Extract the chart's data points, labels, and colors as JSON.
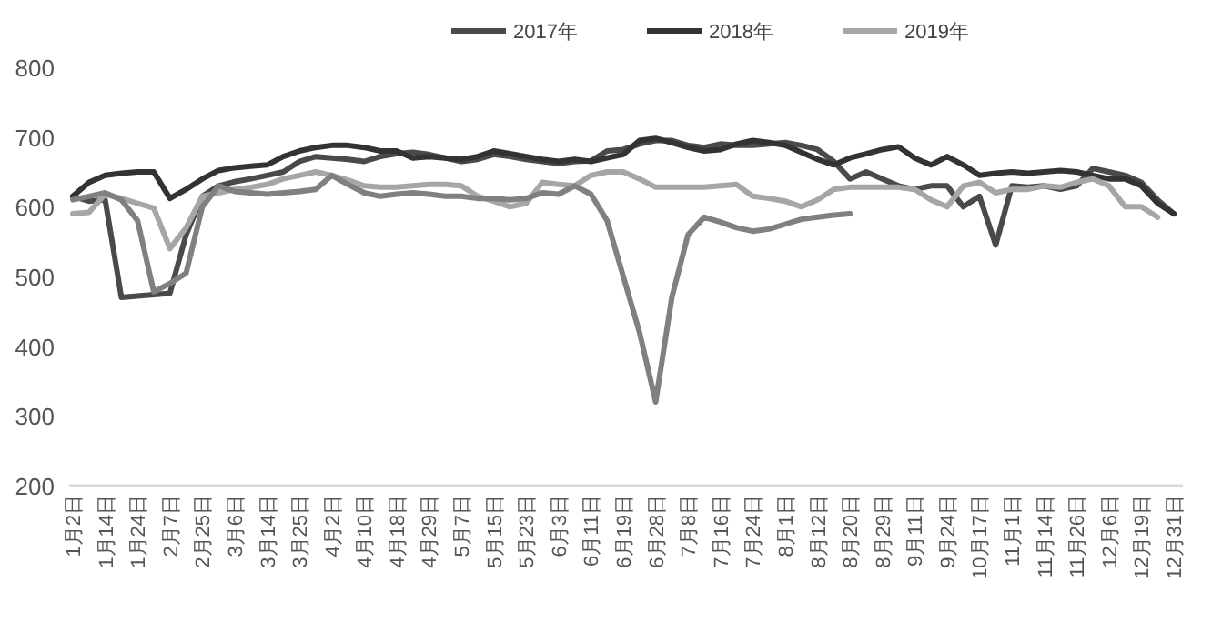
{
  "chart_data": {
    "type": "line",
    "categories": [
      "1月2日",
      null,
      "1月14日",
      null,
      "1月24日",
      null,
      "2月7日",
      null,
      "2月25日",
      null,
      "3月6日",
      null,
      "3月14日",
      null,
      "3月25日",
      null,
      "4月2日",
      null,
      "4月10日",
      null,
      "4月18日",
      null,
      "4月29日",
      null,
      "5月7日",
      null,
      "5月15日",
      null,
      "5月23日",
      null,
      "6月3日",
      null,
      "6月11日",
      null,
      "6月19日",
      null,
      "6月28日",
      null,
      "7月8日",
      null,
      "7月16日",
      null,
      "7月24日",
      null,
      "8月1日",
      null,
      "8月12日",
      null,
      "8月20日",
      null,
      "8月29日",
      null,
      "9月11日",
      null,
      "9月24日",
      null,
      "10月17日",
      null,
      "11月1日",
      null,
      "11月14日",
      null,
      "11月26日",
      null,
      "12月6日",
      null,
      "12月19日",
      null,
      "12月31日"
    ],
    "series": [
      {
        "name": "2017年",
        "color": "#4a4a4a",
        "values": [
          615,
          608,
          610,
          470,
          472,
          474,
          476,
          560,
          615,
          630,
          636,
          640,
          645,
          650,
          665,
          672,
          670,
          668,
          665,
          672,
          676,
          678,
          675,
          670,
          665,
          668,
          675,
          672,
          668,
          665,
          662,
          665,
          666,
          680,
          682,
          690,
          695,
          695,
          688,
          685,
          690,
          688,
          688,
          690,
          692,
          688,
          682,
          665,
          640,
          650,
          640,
          630,
          625,
          630,
          630,
          600,
          615,
          545,
          630,
          628,
          630,
          625,
          630,
          655,
          650,
          645,
          635,
          610,
          590
        ]
      },
      {
        "name": "2018年",
        "color": "#333333",
        "values": [
          615,
          635,
          645,
          648,
          650,
          650,
          612,
          625,
          640,
          652,
          656,
          658,
          660,
          672,
          680,
          685,
          688,
          688,
          685,
          680,
          680,
          670,
          672,
          670,
          668,
          672,
          680,
          676,
          672,
          668,
          665,
          668,
          665,
          670,
          675,
          695,
          698,
          692,
          685,
          680,
          682,
          690,
          695,
          692,
          688,
          678,
          668,
          660,
          670,
          676,
          682,
          686,
          670,
          660,
          672,
          660,
          645,
          648,
          650,
          648,
          650,
          652,
          650,
          645,
          640,
          640,
          630,
          605,
          590
        ]
      },
      {
        "name": "2019年",
        "color": "#a6a6a6",
        "values": [
          590,
          592,
          618,
          612,
          605,
          598,
          540,
          570,
          615,
          620,
          625,
          628,
          632,
          640,
          645,
          650,
          645,
          638,
          630,
          628,
          628,
          630,
          632,
          632,
          630,
          615,
          608,
          600,
          605,
          635,
          632,
          630,
          645,
          650,
          650,
          640,
          628,
          628,
          628,
          628,
          630,
          632,
          615,
          612,
          608,
          600,
          610,
          625,
          628,
          628,
          628,
          628,
          625,
          610,
          600,
          630,
          635,
          620,
          625,
          625,
          630,
          628,
          635,
          640,
          630,
          600,
          600,
          585,
          null
        ]
      },
      {
        "color": "#808080",
        "values": [
          610,
          615,
          620,
          610,
          580,
          478,
          490,
          505,
          600,
          630,
          622,
          620,
          618,
          620,
          622,
          625,
          645,
          632,
          620,
          615,
          618,
          620,
          618,
          615,
          615,
          612,
          612,
          610,
          612,
          620,
          618,
          630,
          618,
          580,
          500,
          420,
          320,
          470,
          560,
          585,
          578,
          570,
          565,
          568,
          575,
          582,
          585,
          588,
          590,
          null,
          null,
          null,
          null,
          null,
          null,
          null,
          null,
          null,
          null,
          null,
          null,
          null,
          null,
          null,
          null,
          null,
          null,
          null,
          null
        ]
      }
    ],
    "ylim": [
      200,
      800
    ],
    "yticks": [
      200,
      300,
      400,
      500,
      600,
      700,
      800
    ],
    "grid": false,
    "legend": "top",
    "line_style": "solid",
    "marker": "none"
  }
}
